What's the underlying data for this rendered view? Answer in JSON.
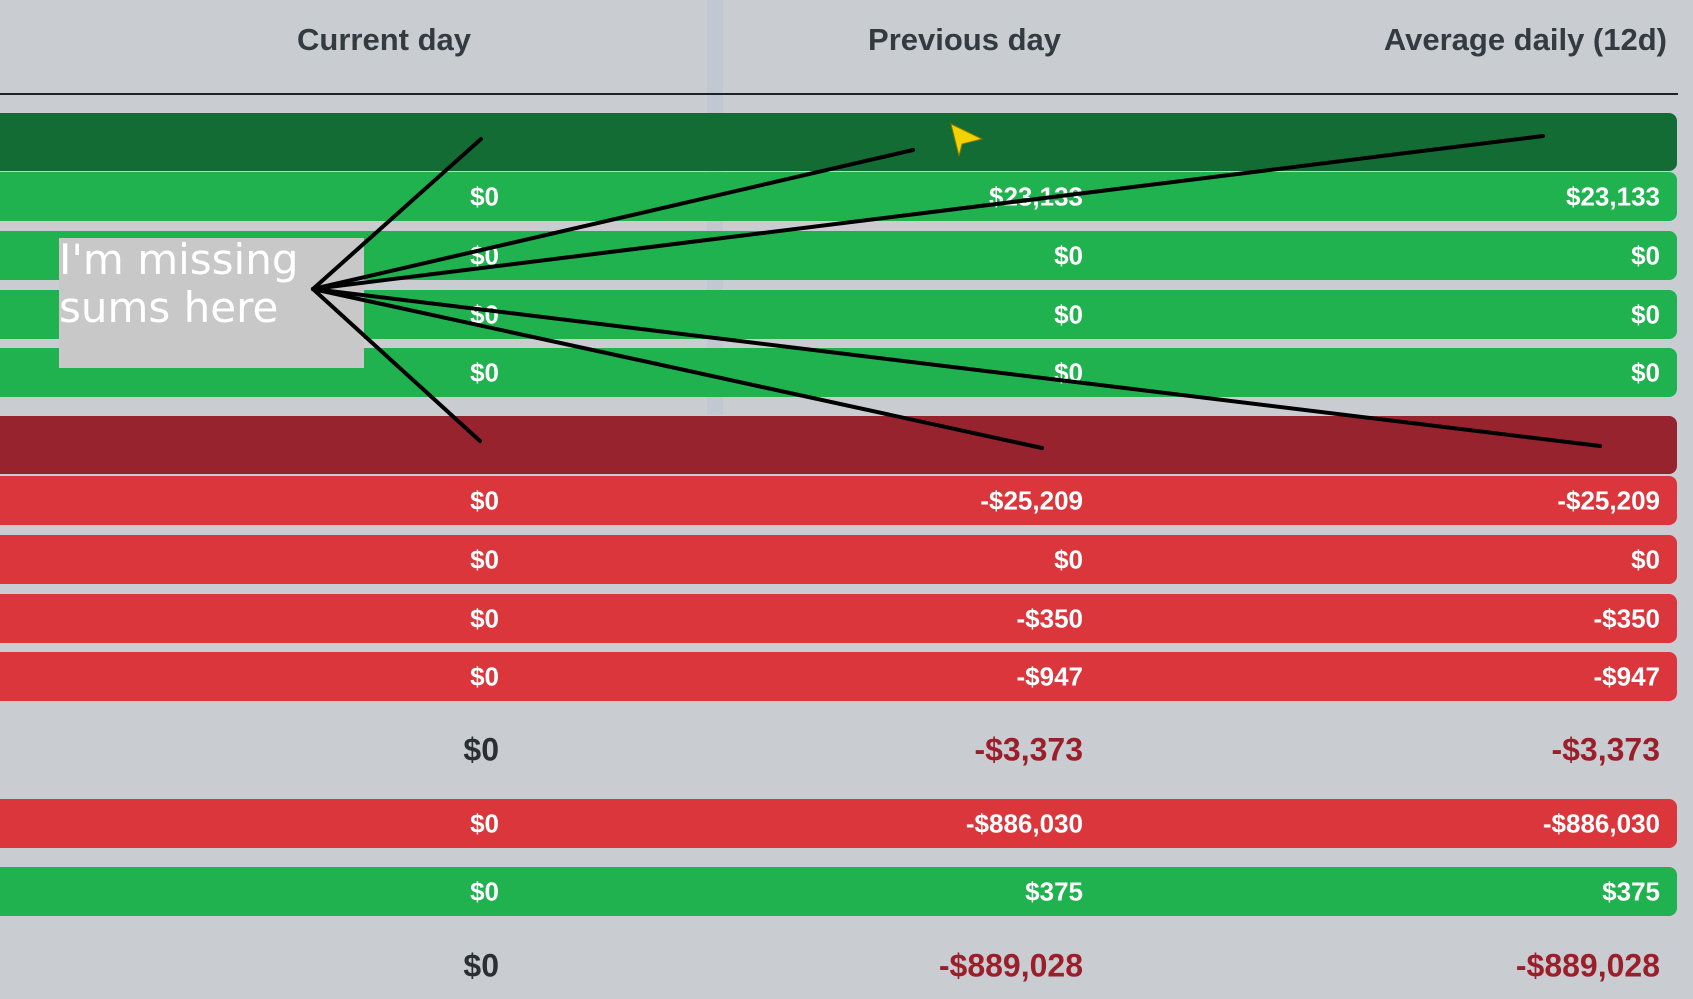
{
  "header": {
    "current_day": "Current day",
    "previous_day": "Previous day",
    "average_daily": "Average daily (12d)"
  },
  "income_rows": [
    {
      "current": "$0",
      "previous": "$23,133",
      "average": "$23,133"
    },
    {
      "current": "$0",
      "previous": "$0",
      "average": "$0"
    },
    {
      "current": "$0",
      "previous": "$0",
      "average": "$0"
    },
    {
      "current": "$0",
      "previous": "$0",
      "average": "$0"
    }
  ],
  "expense_rows": [
    {
      "current": "$0",
      "previous": "-$25,209",
      "average": "-$25,209"
    },
    {
      "current": "$0",
      "previous": "$0",
      "average": "$0"
    },
    {
      "current": "$0",
      "previous": "-$350",
      "average": "-$350"
    },
    {
      "current": "$0",
      "previous": "-$947",
      "average": "-$947"
    }
  ],
  "subtotal": {
    "current": "$0",
    "previous": "-$3,373",
    "average": "-$3,373"
  },
  "red_row": {
    "current": "$0",
    "previous": "-$886,030",
    "average": "-$886,030"
  },
  "green_row": {
    "current": "$0",
    "previous": "$375",
    "average": "$375"
  },
  "total": {
    "current": "$0",
    "previous": "-$889,028",
    "average": "-$889,028"
  },
  "annotation": {
    "text": "I'm missing sums here"
  },
  "colors": {
    "income_header": "#146c35",
    "income_row": "#20b24e",
    "expense_header": "#97232e",
    "expense_row": "#dc363d",
    "negative_text": "#9b1f2a",
    "cursor": "#f2d300"
  },
  "icons": {
    "cursor": "pointer-arrow-icon"
  }
}
